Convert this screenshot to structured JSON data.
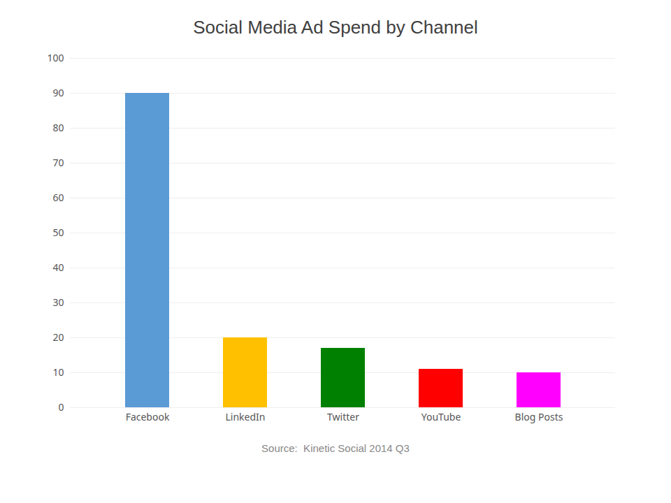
{
  "chart_data": {
    "type": "bar",
    "title": "Social Media Ad Spend by Channel",
    "categories": [
      "Facebook",
      "LinkedIn",
      "Twitter",
      "YouTube",
      "Blog Posts"
    ],
    "values": [
      90,
      20,
      17,
      11,
      10
    ],
    "colors": [
      "#5B9BD5",
      "#FFC000",
      "#008000",
      "#FF0000",
      "#FF00FF"
    ],
    "ylim": [
      0,
      100
    ],
    "yticks": [
      0,
      10,
      20,
      30,
      40,
      50,
      60,
      70,
      80,
      90,
      100
    ],
    "grid": true,
    "annotations": [
      "Source:  Kinetic Social 2014 Q3"
    ]
  }
}
